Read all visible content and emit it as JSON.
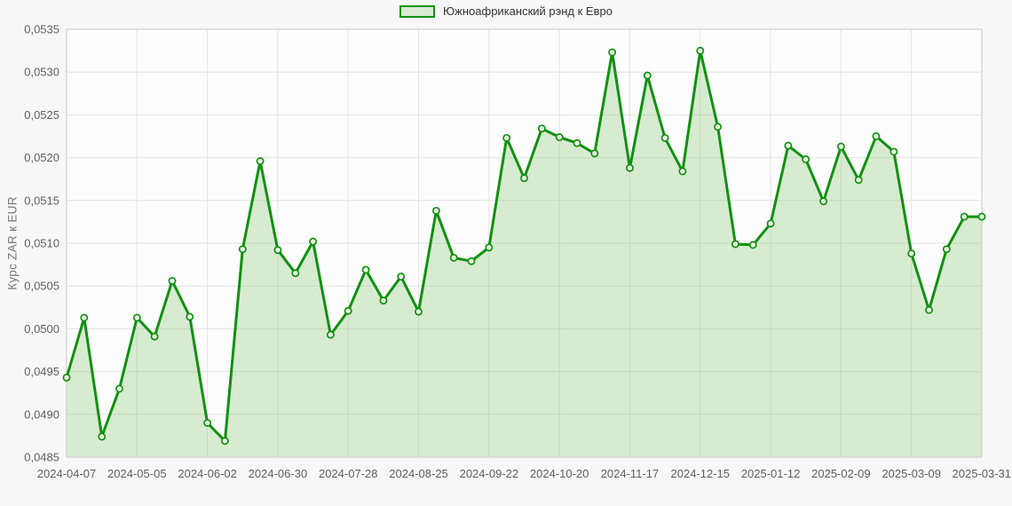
{
  "chart_data": {
    "type": "area",
    "title": "",
    "legend_label": "Южноафриканский рэнд к Евро",
    "ylabel": "Курс ZAR к EUR",
    "xlabel": "",
    "legend_position": "top-center",
    "grid": true,
    "ylim": [
      0.0485,
      0.0535
    ],
    "y_ticks": [
      0.0485,
      0.049,
      0.0495,
      0.05,
      0.0505,
      0.051,
      0.0515,
      0.052,
      0.0525,
      0.053,
      0.0535
    ],
    "y_tick_labels": [
      "0,0485",
      "0,0490",
      "0,0495",
      "0,0500",
      "0,0505",
      "0,0510",
      "0,0515",
      "0,0520",
      "0,0525",
      "0,0530",
      "0,0535"
    ],
    "x_tick_labels": [
      "2024-04-07",
      "2024-05-05",
      "2024-06-02",
      "2024-06-30",
      "2024-07-28",
      "2024-08-25",
      "2024-09-22",
      "2024-10-20",
      "2024-11-17",
      "2024-12-15",
      "2025-01-12",
      "2025-02-09",
      "2025-03-09",
      "2025-03-31"
    ],
    "x_tick_every": 4,
    "x": [
      "2024-04-07",
      "2024-04-14",
      "2024-04-21",
      "2024-04-28",
      "2024-05-05",
      "2024-05-12",
      "2024-05-19",
      "2024-05-26",
      "2024-06-02",
      "2024-06-09",
      "2024-06-16",
      "2024-06-23",
      "2024-06-30",
      "2024-07-07",
      "2024-07-14",
      "2024-07-21",
      "2024-07-28",
      "2024-08-04",
      "2024-08-11",
      "2024-08-18",
      "2024-08-25",
      "2024-09-01",
      "2024-09-08",
      "2024-09-15",
      "2024-09-22",
      "2024-09-29",
      "2024-10-06",
      "2024-10-13",
      "2024-10-20",
      "2024-10-27",
      "2024-11-03",
      "2024-11-10",
      "2024-11-17",
      "2024-11-24",
      "2024-12-01",
      "2024-12-08",
      "2024-12-15",
      "2024-12-22",
      "2024-12-29",
      "2025-01-05",
      "2025-01-12",
      "2025-01-19",
      "2025-01-26",
      "2025-02-02",
      "2025-02-09",
      "2025-02-16",
      "2025-02-23",
      "2025-03-02",
      "2025-03-09",
      "2025-03-16",
      "2025-03-23",
      "2025-03-30",
      "2025-03-31"
    ],
    "values": [
      0.04943,
      0.05013,
      0.04874,
      0.0493,
      0.05013,
      0.04991,
      0.05056,
      0.05014,
      0.0489,
      0.04869,
      0.05093,
      0.05196,
      0.05092,
      0.05065,
      0.05102,
      0.04993,
      0.05021,
      0.05069,
      0.05033,
      0.05061,
      0.0502,
      0.05138,
      0.05083,
      0.05079,
      0.05095,
      0.05223,
      0.05176,
      0.05234,
      0.05224,
      0.05217,
      0.05205,
      0.05323,
      0.05188,
      0.05296,
      0.05223,
      0.05184,
      0.05325,
      0.05236,
      0.05099,
      0.05098,
      0.05123,
      0.05214,
      0.05198,
      0.05149,
      0.05213,
      0.05174,
      0.05225,
      0.05207,
      0.05088,
      0.05022,
      0.05093,
      0.05131,
      0.05131
    ],
    "colors": {
      "line": "#119111",
      "area_fill": "rgba(140,200,124,0.34)",
      "marker_fill": "#e9f4e3",
      "grid": "#e4e4e4",
      "plot_border": "#c9c9c9",
      "plot_bg": "#fdfdfd",
      "page_bg": "#f7f7f7",
      "tick_text": "#606060",
      "axis_title_text": "#777777",
      "legend_text": "#333333"
    }
  }
}
